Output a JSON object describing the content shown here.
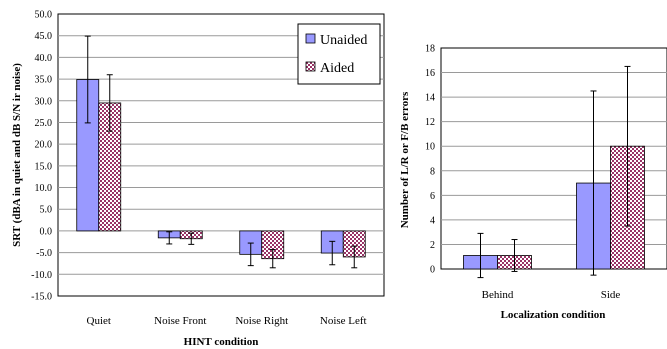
{
  "chart_data": [
    {
      "type": "bar",
      "title": "",
      "xlabel": "HINT condition",
      "ylabel": "SRT (dBA in quiet and dB S/N ir noise)",
      "ylim": [
        -15,
        50
      ],
      "yticks": [
        "50.0",
        "45.0",
        "40.0",
        "35.0",
        "30.0",
        "25.0",
        "20.0",
        "15.0",
        "10.0",
        "5.0",
        "0.0",
        "-5.0",
        "-10.0",
        "-15.0"
      ],
      "grid": true,
      "legend_position": "top-right",
      "categories": [
        "Quiet",
        "Noise Front",
        "Noise Right",
        "Noise Left"
      ],
      "series": [
        {
          "name": "Unaided",
          "values": [
            34.9,
            -1.6,
            -5.4,
            -5.1
          ],
          "error": [
            10.0,
            1.4,
            2.6,
            2.7
          ]
        },
        {
          "name": "Aided",
          "values": [
            29.5,
            -1.8,
            -6.4,
            -6.0
          ],
          "error": [
            6.5,
            1.3,
            2.1,
            2.5
          ]
        }
      ]
    },
    {
      "type": "bar",
      "title": "",
      "xlabel": "Localization condition",
      "ylabel": "Number of L/R or F/B errors",
      "ylim": [
        0,
        18
      ],
      "yticks": [
        "18",
        "16",
        "14",
        "12",
        "10",
        "8",
        "6",
        "4",
        "2",
        "0"
      ],
      "grid": true,
      "categories": [
        "Behind",
        "Side"
      ],
      "series": [
        {
          "name": "Unaided",
          "values": [
            1.1,
            7.0
          ],
          "error": [
            1.8,
            7.5
          ]
        },
        {
          "name": "Aided",
          "values": [
            1.1,
            10.0
          ],
          "error": [
            1.3,
            6.5
          ]
        }
      ]
    }
  ],
  "colors": {
    "unaided": "#9999ff",
    "aided_pattern": "#993366",
    "gridline": "#9a9a9a"
  }
}
